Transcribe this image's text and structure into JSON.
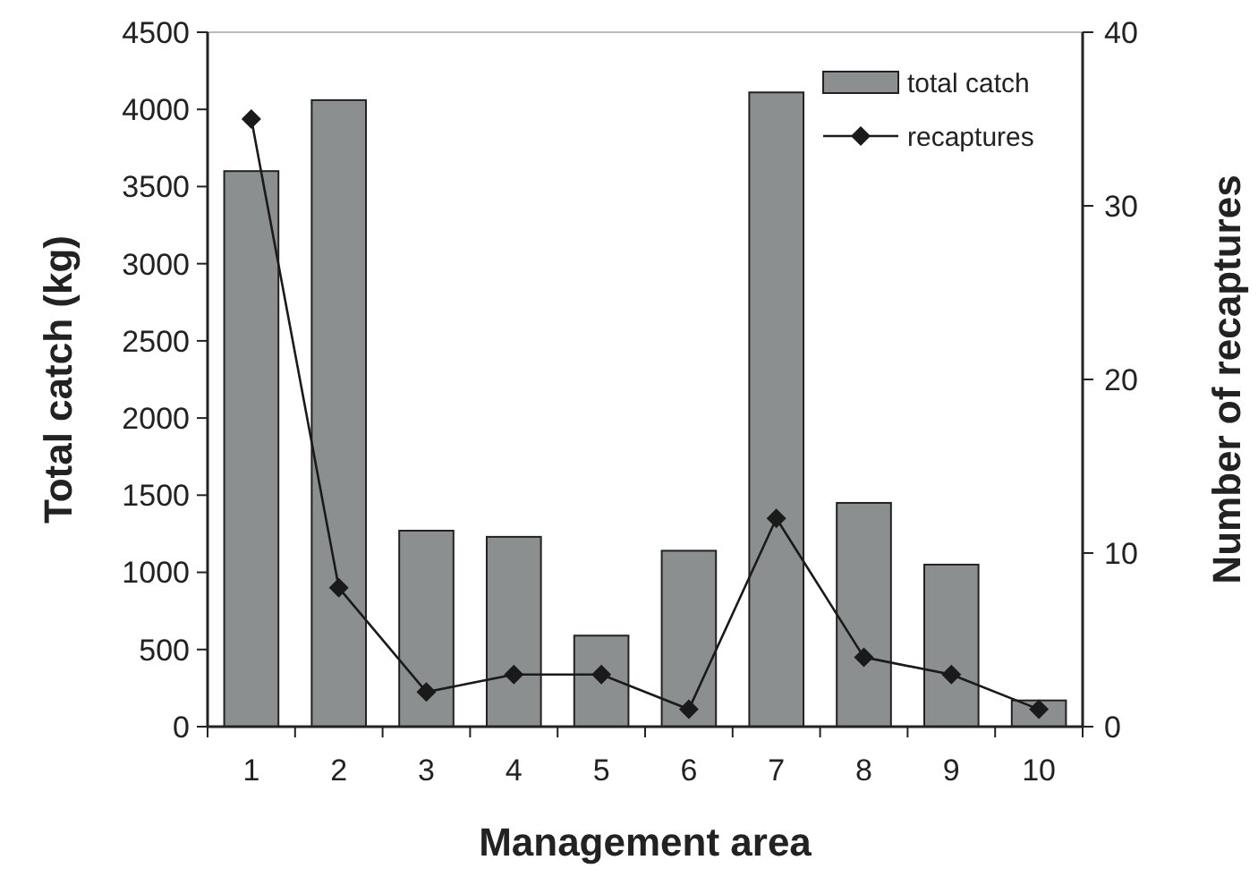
{
  "chart_data": {
    "type": "bar",
    "xlabel": "Management area",
    "ylabel": "Total catch (kg)",
    "y2label": "Number of recaptures",
    "categories": [
      "1",
      "2",
      "3",
      "4",
      "5",
      "6",
      "7",
      "8",
      "9",
      "10"
    ],
    "series": [
      {
        "name": "total catch",
        "color": "#8c8f8f",
        "values": [
          3600,
          4060,
          1270,
          1230,
          590,
          1140,
          4110,
          1450,
          1050,
          170
        ]
      },
      {
        "name": "recaptures",
        "type": "line",
        "axis": "y2",
        "color": "#1a1a1a",
        "marker": "diamond",
        "values": [
          35,
          8,
          2,
          3,
          3,
          1,
          12,
          4,
          3,
          1
        ]
      }
    ],
    "ylim": [
      0,
      4500
    ],
    "yticks": [
      0,
      500,
      1000,
      1500,
      2000,
      2500,
      3000,
      3500,
      4000,
      4500
    ],
    "y2lim": [
      0,
      40
    ],
    "y2ticks": [
      0,
      10,
      20,
      30,
      40
    ],
    "legend": "top right",
    "grid": false
  }
}
